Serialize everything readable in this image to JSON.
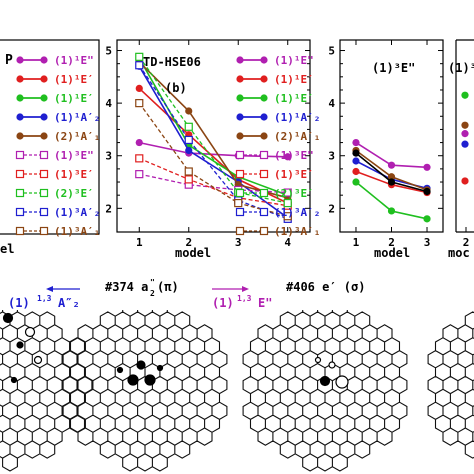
{
  "chart_data": [
    {
      "type": "line",
      "panel": "a",
      "xlabel": "model",
      "legend": {
        "placement": "inside-right",
        "entries": [
          {
            "label": "(1)¹E\"",
            "color": "#b01fb0",
            "style": "solid"
          },
          {
            "label": "(1)¹E′",
            "color": "#e01f1f",
            "style": "solid"
          },
          {
            "label": "(1)¹E′",
            "color": "#1fbf1f",
            "style": "solid"
          },
          {
            "label": "(1)¹A′₂",
            "color": "#1f1fd0",
            "style": "solid"
          },
          {
            "label": "(2)¹A′₁",
            "color": "#8b4513",
            "style": "solid"
          },
          {
            "label": "(1)³E\"",
            "color": "#b01fb0",
            "style": "dashed"
          },
          {
            "label": "(1)³E′",
            "color": "#e01f1f",
            "style": "dashed"
          },
          {
            "label": "(2)³E′",
            "color": "#1fbf1f",
            "style": "dashed"
          },
          {
            "label": "(1)³A′₂",
            "color": "#1f1fd0",
            "style": "dashed"
          },
          {
            "label": "(1)³A′₁",
            "color": "#8b4513",
            "style": "dashed"
          }
        ]
      },
      "partial_title": "P"
    },
    {
      "type": "line",
      "panel": "b",
      "title": "TD-HSE06",
      "panel_label": "(b)",
      "xlabel": "model",
      "x": [
        1,
        2,
        3,
        4
      ],
      "xlim": [
        0.55,
        4.45
      ],
      "ylim": [
        1.55,
        5.2
      ],
      "yticks": [
        2,
        3,
        4,
        5
      ],
      "legend": {
        "placement": "inside-right",
        "entries": [
          {
            "label": "(1)¹E\"",
            "color": "#b01fb0",
            "style": "solid"
          },
          {
            "label": "(1)¹E′",
            "color": "#e01f1f",
            "style": "solid"
          },
          {
            "label": "(1)¹E′",
            "color": "#1fbf1f",
            "style": "solid"
          },
          {
            "label": "(1)¹A′₂",
            "color": "#1f1fd0",
            "style": "solid"
          },
          {
            "label": "(2)¹A′₁",
            "color": "#8b4513",
            "style": "solid"
          },
          {
            "label": "(1)³E\"",
            "color": "#b01fb0",
            "style": "dashed"
          },
          {
            "label": "(1)³E′",
            "color": "#e01f1f",
            "style": "dashed"
          },
          {
            "label": "(2)³E′",
            "color": "#1fbf1f",
            "style": "dashed"
          },
          {
            "label": "(1)³A′₂",
            "color": "#1f1fd0",
            "style": "dashed"
          },
          {
            "label": "(1)³A′₁",
            "color": "#8b4513",
            "style": "dashed"
          }
        ]
      },
      "series": [
        {
          "color": "#b01fb0",
          "style": "solid",
          "values": [
            3.25,
            3.05,
            3.0,
            2.98
          ]
        },
        {
          "color": "#e01f1f",
          "style": "solid",
          "values": [
            4.28,
            3.4,
            2.55,
            2.1
          ]
        },
        {
          "color": "#1fbf1f",
          "style": "solid",
          "values": [
            4.85,
            3.2,
            2.6,
            2.25
          ]
        },
        {
          "color": "#1f1fd0",
          "style": "solid",
          "values": [
            4.7,
            3.1,
            2.5,
            1.82
          ]
        },
        {
          "color": "#8b4513",
          "style": "solid",
          "values": [
            4.78,
            3.85,
            2.45,
            2.2
          ]
        },
        {
          "color": "#b01fb0",
          "style": "dashed",
          "values": [
            2.65,
            2.45,
            2.35,
            2.3
          ]
        },
        {
          "color": "#e01f1f",
          "style": "dashed",
          "values": [
            2.95,
            2.55,
            2.2,
            2.05
          ]
        },
        {
          "color": "#1fbf1f",
          "style": "dashed",
          "values": [
            4.88,
            3.55,
            2.3,
            2.1
          ]
        },
        {
          "color": "#1f1fd0",
          "style": "dashed",
          "values": [
            4.72,
            3.3,
            2.15,
            1.8
          ]
        },
        {
          "color": "#8b4513",
          "style": "dashed",
          "values": [
            4.0,
            2.7,
            2.1,
            1.85
          ]
        }
      ]
    },
    {
      "type": "line",
      "panel": "c",
      "xlabel": "model",
      "x": [
        1,
        2,
        3
      ],
      "xlim": [
        0.55,
        3.45
      ],
      "ylim": [
        1.55,
        5.2
      ],
      "yticks": [
        2,
        3,
        4,
        5
      ],
      "title": "(1)³E\"",
      "series": [
        {
          "color": "#b01fb0",
          "style": "solid",
          "values": [
            3.25,
            2.82,
            2.78
          ]
        },
        {
          "color": "#e01f1f",
          "style": "solid",
          "values": [
            2.7,
            2.45,
            2.3
          ]
        },
        {
          "color": "#1fbf1f",
          "style": "solid",
          "values": [
            2.5,
            1.95,
            1.8
          ]
        },
        {
          "color": "#1f1fd0",
          "style": "solid",
          "values": [
            2.9,
            2.55,
            2.38
          ]
        },
        {
          "color": "#8b4513",
          "style": "solid",
          "values": [
            3.1,
            2.6,
            2.35
          ]
        },
        {
          "color": "#000000",
          "style": "solid",
          "values": [
            3.05,
            2.5,
            2.32
          ]
        }
      ]
    },
    {
      "type": "scatter",
      "panel": "d",
      "partial_title": "(1)³",
      "xticks": [
        2
      ],
      "xlabel": "moc",
      "points": [
        {
          "x": 2,
          "y": 4.15,
          "color": "#1fbf1f"
        },
        {
          "x": 2,
          "y": 3.58,
          "color": "#8b4513"
        },
        {
          "x": 2,
          "y": 3.42,
          "color": "#b01fb0"
        },
        {
          "x": 2,
          "y": 3.22,
          "color": "#1f1fd0"
        },
        {
          "x": 2,
          "y": 2.52,
          "color": "#e01f1f"
        }
      ]
    }
  ],
  "orbitals": {
    "left_transition": {
      "label_main": "(1)",
      "label_sup": "1,3",
      "label_tail": "A″₂",
      "color": "#1f1fd0",
      "arrow": "left"
    },
    "mid_title": {
      "prefix": "#374 a",
      "sub": "2",
      "sup": "\"",
      "suffix": " (π)"
    },
    "mid_transition": {
      "label_main": "(1)",
      "label_sup": "1,3",
      "label_tail": "E\"",
      "color": "#b01fb0",
      "arrow": "right"
    },
    "right_title": {
      "text": "#406 e′ (σ)"
    }
  }
}
